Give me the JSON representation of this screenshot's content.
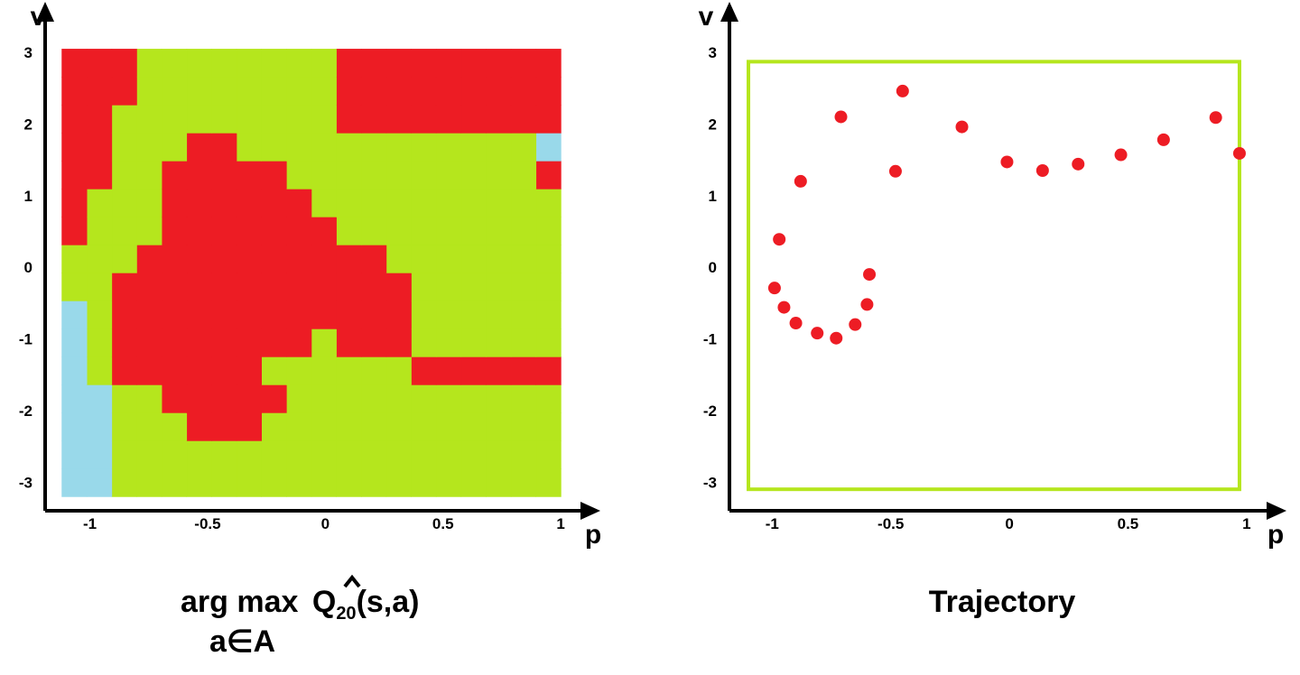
{
  "chart_data": [
    {
      "type": "heatmap",
      "title": {
        "operator": "arg max",
        "function": "Q",
        "subscript": "20",
        "args": "(s,a)",
        "under": "a∈A"
      },
      "x_label": "p",
      "y_label": "v",
      "xlim": [
        -1.19,
        1.13
      ],
      "ylim": [
        -3.4,
        3.58
      ],
      "xticks": [
        -1,
        -0.5,
        0,
        0.5,
        1
      ],
      "yticks": [
        -3,
        -2,
        -1,
        0,
        1,
        2,
        3
      ],
      "x_extent": [
        -1.12,
        1.0
      ],
      "y_extent": [
        -3.2,
        3.05
      ],
      "colors": [
        "#b5e61d",
        "#ed1c24",
        "#99d9ea"
      ],
      "values": [
        [
          1,
          1,
          1,
          0,
          0,
          0,
          0,
          0,
          0,
          0,
          0,
          1,
          1,
          1,
          1,
          1,
          1,
          1,
          1,
          1
        ],
        [
          1,
          1,
          1,
          0,
          0,
          0,
          0,
          0,
          0,
          0,
          0,
          1,
          1,
          1,
          1,
          1,
          1,
          1,
          1,
          1
        ],
        [
          1,
          1,
          0,
          0,
          0,
          0,
          0,
          0,
          0,
          0,
          0,
          1,
          1,
          1,
          1,
          1,
          1,
          1,
          1,
          1
        ],
        [
          1,
          1,
          0,
          0,
          0,
          1,
          1,
          0,
          0,
          0,
          0,
          0,
          0,
          0,
          0,
          0,
          0,
          0,
          0,
          2
        ],
        [
          1,
          1,
          0,
          0,
          1,
          1,
          1,
          1,
          1,
          0,
          0,
          0,
          0,
          0,
          0,
          0,
          0,
          0,
          0,
          1
        ],
        [
          1,
          0,
          0,
          0,
          1,
          1,
          1,
          1,
          1,
          1,
          0,
          0,
          0,
          0,
          0,
          0,
          0,
          0,
          0,
          0
        ],
        [
          1,
          0,
          0,
          0,
          1,
          1,
          1,
          1,
          1,
          1,
          1,
          0,
          0,
          0,
          0,
          0,
          0,
          0,
          0,
          0
        ],
        [
          0,
          0,
          0,
          1,
          1,
          1,
          1,
          1,
          1,
          1,
          1,
          1,
          1,
          0,
          0,
          0,
          0,
          0,
          0,
          0
        ],
        [
          0,
          0,
          1,
          1,
          1,
          1,
          1,
          1,
          1,
          1,
          1,
          1,
          1,
          1,
          0,
          0,
          0,
          0,
          0,
          0
        ],
        [
          2,
          0,
          1,
          1,
          1,
          1,
          1,
          1,
          1,
          1,
          1,
          1,
          1,
          1,
          0,
          0,
          0,
          0,
          0,
          0
        ],
        [
          2,
          0,
          1,
          1,
          1,
          1,
          1,
          1,
          1,
          1,
          0,
          1,
          1,
          1,
          0,
          0,
          0,
          0,
          0,
          0
        ],
        [
          2,
          0,
          1,
          1,
          1,
          1,
          1,
          1,
          0,
          0,
          0,
          0,
          0,
          0,
          1,
          1,
          1,
          1,
          1,
          1
        ],
        [
          2,
          2,
          0,
          0,
          1,
          1,
          1,
          1,
          1,
          0,
          0,
          0,
          0,
          0,
          0,
          0,
          0,
          0,
          0,
          0
        ],
        [
          2,
          2,
          0,
          0,
          0,
          1,
          1,
          1,
          0,
          0,
          0,
          0,
          0,
          0,
          0,
          0,
          0,
          0,
          0,
          0
        ],
        [
          2,
          2,
          0,
          0,
          0,
          0,
          0,
          0,
          0,
          0,
          0,
          0,
          0,
          0,
          0,
          0,
          0,
          0,
          0,
          0
        ],
        [
          2,
          2,
          0,
          0,
          0,
          0,
          0,
          0,
          0,
          0,
          0,
          0,
          0,
          0,
          0,
          0,
          0,
          0,
          0,
          0
        ]
      ]
    },
    {
      "type": "scatter",
      "title": "Trajectory",
      "x_label": "p",
      "y_label": "v",
      "xlim": [
        -1.18,
        1.13
      ],
      "ylim": [
        -3.4,
        3.58
      ],
      "xticks": [
        -1,
        -0.5,
        0,
        0.5,
        1
      ],
      "yticks": [
        -3,
        -2,
        -1,
        0,
        1,
        2,
        3
      ],
      "color": "#ed1c24",
      "box_color": "#b5e61d",
      "box_x": [
        -1.1,
        0.97
      ],
      "box_y": [
        -3.1,
        2.87
      ],
      "x": [
        -0.99,
        -0.97,
        -0.95,
        -0.9,
        -0.88,
        -0.81,
        -0.73,
        -0.71,
        -0.65,
        -0.6,
        -0.59,
        -0.48,
        -0.45,
        -0.2,
        -0.01,
        0.14,
        0.29,
        0.47,
        0.65,
        0.87,
        0.97
      ],
      "values": [
        -0.29,
        0.39,
        -0.56,
        -0.78,
        1.2,
        -0.92,
        -0.99,
        2.1,
        -0.8,
        -0.52,
        -0.1,
        1.34,
        2.46,
        1.96,
        1.47,
        1.35,
        1.44,
        1.57,
        1.78,
        2.09,
        1.59
      ]
    }
  ]
}
